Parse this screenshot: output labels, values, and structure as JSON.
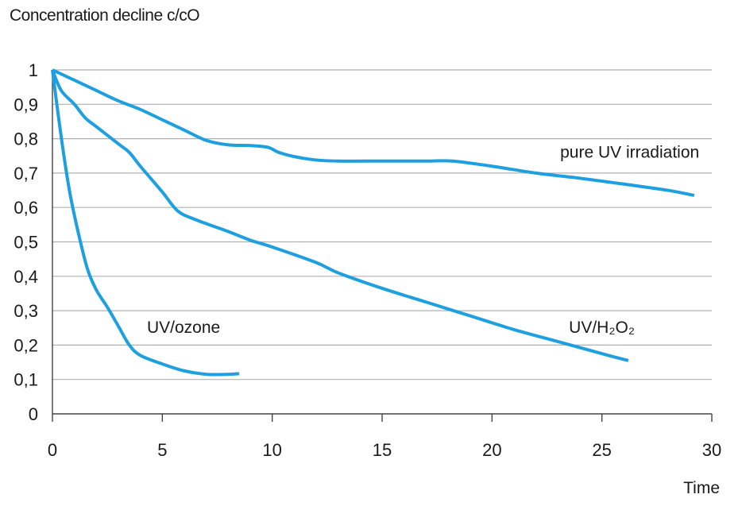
{
  "chart_data": {
    "type": "line",
    "ylabel": "Concentration decline c/cO",
    "xlabel": "Time",
    "xlim": [
      0,
      30
    ],
    "ylim": [
      0,
      1
    ],
    "x_ticks": [
      0,
      5,
      10,
      15,
      20,
      25,
      30
    ],
    "y_ticks": [
      0,
      0.1,
      0.2,
      0.3,
      0.4,
      0.5,
      0.6,
      0.7,
      0.8,
      0.9,
      1
    ],
    "y_tick_labels": [
      "0",
      "0,1",
      "0,2",
      "0,3",
      "0,4",
      "0,5",
      "0,6",
      "0,7",
      "0,8",
      "0,9",
      "1"
    ],
    "grid": "horizontal",
    "line_color": "#1ea0e0",
    "axis_color": "#444444",
    "grid_color": "#b0b0b0",
    "series": [
      {
        "name": "pure UV irradiation",
        "points": [
          [
            0,
            1
          ],
          [
            1,
            0.97
          ],
          [
            2,
            0.94
          ],
          [
            3,
            0.91
          ],
          [
            4,
            0.885
          ],
          [
            5,
            0.855
          ],
          [
            6,
            0.825
          ],
          [
            7,
            0.795
          ],
          [
            8,
            0.782
          ],
          [
            9,
            0.78
          ],
          [
            9.8,
            0.775
          ],
          [
            10.3,
            0.76
          ],
          [
            11,
            0.748
          ],
          [
            12,
            0.738
          ],
          [
            13,
            0.735
          ],
          [
            15,
            0.735
          ],
          [
            17,
            0.735
          ],
          [
            18.2,
            0.735
          ],
          [
            20,
            0.72
          ],
          [
            22,
            0.7
          ],
          [
            24,
            0.685
          ],
          [
            26,
            0.668
          ],
          [
            28,
            0.65
          ],
          [
            29.2,
            0.635
          ]
        ]
      },
      {
        "name": "UV/H₂O₂",
        "points": [
          [
            0,
            1
          ],
          [
            0.4,
            0.94
          ],
          [
            1,
            0.9
          ],
          [
            1.5,
            0.86
          ],
          [
            2,
            0.835
          ],
          [
            3,
            0.785
          ],
          [
            3.5,
            0.76
          ],
          [
            4,
            0.72
          ],
          [
            5,
            0.645
          ],
          [
            5.7,
            0.59
          ],
          [
            6.5,
            0.565
          ],
          [
            8,
            0.53
          ],
          [
            9,
            0.505
          ],
          [
            10,
            0.485
          ],
          [
            12,
            0.44
          ],
          [
            13,
            0.41
          ],
          [
            15,
            0.365
          ],
          [
            17,
            0.325
          ],
          [
            19,
            0.285
          ],
          [
            21,
            0.245
          ],
          [
            23,
            0.21
          ],
          [
            25,
            0.175
          ],
          [
            26.2,
            0.155
          ]
        ]
      },
      {
        "name": "UV/ozone",
        "points": [
          [
            0,
            1
          ],
          [
            0.2,
            0.9
          ],
          [
            0.5,
            0.76
          ],
          [
            0.8,
            0.64
          ],
          [
            1.2,
            0.52
          ],
          [
            1.6,
            0.42
          ],
          [
            2,
            0.36
          ],
          [
            2.5,
            0.31
          ],
          [
            3,
            0.255
          ],
          [
            3.5,
            0.2
          ],
          [
            4,
            0.17
          ],
          [
            5,
            0.145
          ],
          [
            6,
            0.125
          ],
          [
            7,
            0.115
          ],
          [
            8,
            0.115
          ],
          [
            8.5,
            0.117
          ]
        ]
      }
    ]
  }
}
